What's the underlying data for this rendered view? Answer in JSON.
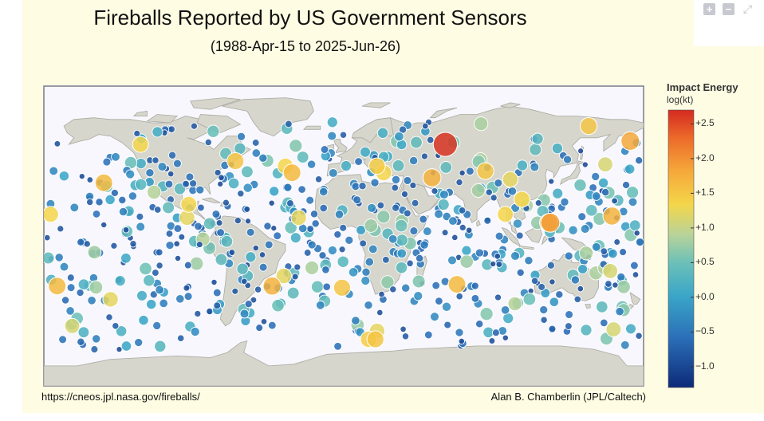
{
  "title": "Fireballs Reported by US Government Sensors",
  "subtitle": "(1988-Apr-15 to 2025-Jun-26)",
  "footer_left": "https://cneos.jpl.nasa.gov/fireballs/",
  "footer_right": "Alan B. Chamberlin (JPL/Caltech)",
  "toolbar": {
    "zoom_in": "+",
    "zoom_out": "−",
    "reset": "⤢"
  },
  "chart_data": {
    "type": "scatter",
    "projection": "equirectangular world map",
    "xlim": [
      -180,
      180
    ],
    "ylim": [
      -90,
      90
    ],
    "colorbar": {
      "title": "Impact Energy",
      "subtitle": "log(kt)",
      "range": [
        -1.3,
        2.7
      ],
      "ticks": [
        {
          "value": 2.5,
          "label": "+2.5"
        },
        {
          "value": 2.0,
          "label": "+2.0"
        },
        {
          "value": 1.5,
          "label": "+1.5"
        },
        {
          "value": 1.0,
          "label": "+1.0"
        },
        {
          "value": 0.5,
          "label": "+0.5"
        },
        {
          "value": 0.0,
          "label": "+0.0"
        },
        {
          "value": -0.5,
          "label": "−0.5"
        },
        {
          "value": -1.0,
          "label": "−1.0"
        }
      ]
    },
    "highlighted_events": [
      {
        "lon": 61,
        "lat": 55,
        "log_kt": 2.6
      },
      {
        "lon": 172,
        "lat": 57,
        "log_kt": 1.5
      },
      {
        "lon": 147,
        "lat": 66,
        "log_kt": 1.2
      },
      {
        "lon": 124,
        "lat": 8,
        "log_kt": 1.6
      },
      {
        "lon": 123,
        "lat": 8,
        "log_kt": 1.4
      },
      {
        "lon": 161,
        "lat": 12,
        "log_kt": 1.4
      },
      {
        "lon": 53,
        "lat": 35,
        "log_kt": 1.4
      },
      {
        "lon": 85,
        "lat": 39,
        "log_kt": 1.2
      },
      {
        "lon": 107,
        "lat": 22,
        "log_kt": 1.0
      },
      {
        "lon": -172,
        "lat": -30,
        "log_kt": 1.3
      },
      {
        "lon": -176,
        "lat": 13,
        "log_kt": 1.0
      },
      {
        "lon": -144,
        "lat": 32,
        "log_kt": 1.3
      },
      {
        "lon": -93,
        "lat": 19,
        "log_kt": 1.0
      },
      {
        "lon": -65,
        "lat": 45,
        "log_kt": 1.2
      },
      {
        "lon": -35,
        "lat": 42,
        "log_kt": 1.0
      },
      {
        "lon": -31,
        "lat": 38,
        "log_kt": 1.3
      },
      {
        "lon": 24,
        "lat": 38,
        "log_kt": 1.0
      },
      {
        "lon": 20,
        "lat": 42,
        "log_kt": 1.1
      },
      {
        "lon": -122,
        "lat": 55,
        "log_kt": 1.0
      },
      {
        "lon": -43,
        "lat": -30,
        "log_kt": 1.4
      },
      {
        "lon": -140,
        "lat": -38,
        "log_kt": 0.9
      },
      {
        "lon": -1,
        "lat": -31,
        "log_kt": 1.2
      },
      {
        "lon": 68,
        "lat": -29,
        "log_kt": 1.3
      },
      {
        "lon": 19,
        "lat": -62,
        "log_kt": 1.2
      },
      {
        "lon": 15,
        "lat": -62,
        "log_kt": 1.1
      },
      {
        "lon": 20,
        "lat": -57,
        "log_kt": 0.9
      },
      {
        "lon": -94,
        "lat": 11,
        "log_kt": 0.9
      },
      {
        "lon": -27,
        "lat": 11,
        "log_kt": 0.9
      },
      {
        "lon": 97,
        "lat": 13,
        "log_kt": 1.0
      },
      {
        "lon": 100,
        "lat": 34,
        "log_kt": 0.9
      },
      {
        "lon": 157,
        "lat": 43,
        "log_kt": 0.8
      },
      {
        "lon": 160,
        "lat": -21,
        "log_kt": 0.8
      },
      {
        "lon": 162,
        "lat": -56,
        "log_kt": 0.8
      },
      {
        "lon": -36,
        "lat": -24,
        "log_kt": 0.9
      },
      {
        "lon": -163,
        "lat": -54,
        "log_kt": 0.8
      }
    ]
  }
}
